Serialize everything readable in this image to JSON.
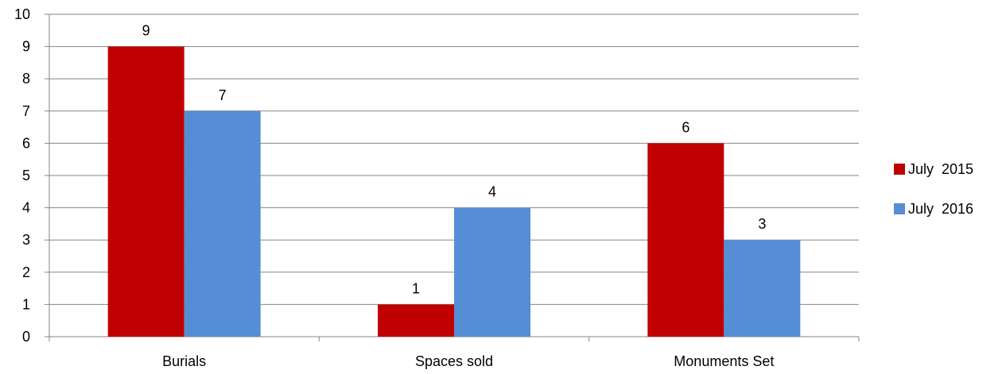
{
  "chart_data": {
    "type": "bar",
    "categories": [
      "Burials",
      "Spaces sold",
      "Monuments Set"
    ],
    "series": [
      {
        "name": "July  2015",
        "values": [
          9,
          1,
          6
        ],
        "color": "#C00000"
      },
      {
        "name": "July  2016",
        "values": [
          7,
          4,
          3
        ],
        "color": "#558ED5"
      }
    ],
    "ylim": [
      0,
      10
    ],
    "yticks": [
      0,
      1,
      2,
      3,
      4,
      5,
      6,
      7,
      8,
      9,
      10
    ],
    "grid": true,
    "legend_position": "right",
    "data_labels": true
  }
}
